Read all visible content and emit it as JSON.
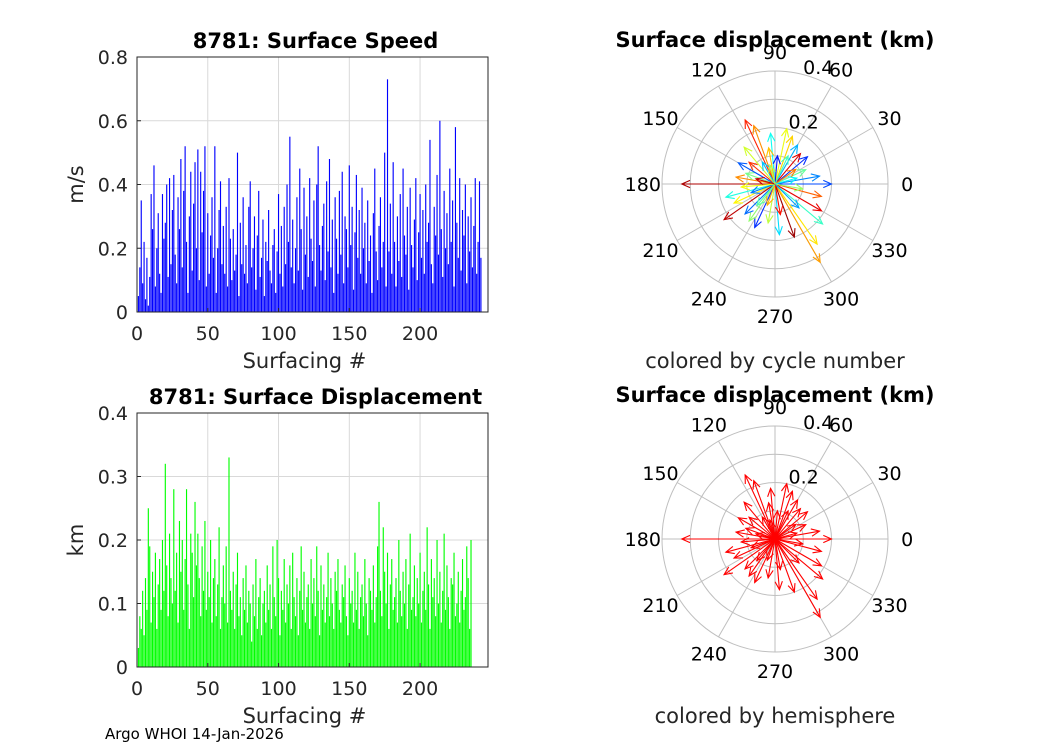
{
  "footer": "Argo WHOI 14-Jan-2026",
  "colors": {
    "speed_bar": "#0000ff",
    "displacement_bar": "#00ff00",
    "hemisphere_arrow": "#ff0000",
    "grid": "#d9d9d9",
    "polar_grid": "#bfbfbf",
    "text": "#262626"
  },
  "chart_data": [
    {
      "id": "speed",
      "type": "bar",
      "title": "8781: Surface Speed",
      "xlabel": "Surfacing #",
      "ylabel": "m/s",
      "xlim": [
        0,
        248
      ],
      "ylim": [
        0,
        0.8
      ],
      "xticks": [
        0,
        50,
        100,
        150,
        200
      ],
      "yticks": [
        0,
        0.2,
        0.4,
        0.6,
        0.8
      ],
      "ytick_labels": [
        "0",
        "0.2",
        "0.4",
        "0.6",
        "0.8"
      ],
      "x_start": 1,
      "values": [
        0.05,
        0.14,
        0.35,
        0.09,
        0.22,
        0.04,
        0.17,
        0.02,
        0.11,
        0.37,
        0.26,
        0.46,
        0.08,
        0.2,
        0.31,
        0.12,
        0.06,
        0.37,
        0.23,
        0.28,
        0.4,
        0.11,
        0.42,
        0.15,
        0.32,
        0.43,
        0.18,
        0.09,
        0.36,
        0.26,
        0.48,
        0.14,
        0.38,
        0.52,
        0.22,
        0.06,
        0.3,
        0.44,
        0.13,
        0.34,
        0.47,
        0.2,
        0.51,
        0.1,
        0.44,
        0.25,
        0.38,
        0.52,
        0.08,
        0.31,
        0.12,
        0.24,
        0.36,
        0.17,
        0.52,
        0.06,
        0.2,
        0.32,
        0.41,
        0.15,
        0.27,
        0.12,
        0.33,
        0.08,
        0.42,
        0.23,
        0.1,
        0.26,
        0.13,
        0.18,
        0.5,
        0.05,
        0.28,
        0.15,
        0.36,
        0.12,
        0.21,
        0.09,
        0.33,
        0.41,
        0.14,
        0.2,
        0.3,
        0.07,
        0.24,
        0.38,
        0.11,
        0.17,
        0.29,
        0.05,
        0.22,
        0.16,
        0.32,
        0.13,
        0.09,
        0.21,
        0.26,
        0.06,
        0.19,
        0.37,
        0.12,
        0.27,
        0.08,
        0.33,
        0.15,
        0.4,
        0.22,
        0.55,
        0.14,
        0.29,
        0.09,
        0.2,
        0.36,
        0.13,
        0.45,
        0.26,
        0.07,
        0.39,
        0.18,
        0.3,
        0.11,
        0.42,
        0.23,
        0.16,
        0.35,
        0.08,
        0.4,
        0.52,
        0.21,
        0.13,
        0.27,
        0.34,
        0.1,
        0.41,
        0.19,
        0.48,
        0.14,
        0.29,
        0.06,
        0.36,
        0.23,
        0.12,
        0.38,
        0.18,
        0.44,
        0.09,
        0.3,
        0.26,
        0.14,
        0.46,
        0.21,
        0.33,
        0.07,
        0.25,
        0.43,
        0.17,
        0.32,
        0.12,
        0.39,
        0.2,
        0.28,
        0.09,
        0.35,
        0.16,
        0.24,
        0.06,
        0.31,
        0.45,
        0.19,
        0.1,
        0.27,
        0.36,
        0.14,
        0.22,
        0.5,
        0.08,
        0.73,
        0.19,
        0.34,
        0.12,
        0.47,
        0.22,
        0.08,
        0.3,
        0.16,
        0.37,
        0.11,
        0.45,
        0.24,
        0.18,
        0.33,
        0.07,
        0.39,
        0.21,
        0.14,
        0.29,
        0.42,
        0.1,
        0.25,
        0.37,
        0.17,
        0.32,
        0.12,
        0.4,
        0.22,
        0.28,
        0.54,
        0.15,
        0.09,
        0.33,
        0.24,
        0.43,
        0.18,
        0.6,
        0.26,
        0.11,
        0.38,
        0.2,
        0.31,
        0.15,
        0.45,
        0.22,
        0.35,
        0.08,
        0.58,
        0.28,
        0.17,
        0.42,
        0.13,
        0.32,
        0.24,
        0.4,
        0.09,
        0.3,
        0.19,
        0.36,
        0.14,
        0.27,
        0.42,
        0.12,
        0.22,
        0.41,
        0.17
      ]
    },
    {
      "id": "displacement",
      "type": "bar",
      "title": "8781: Surface Displacement",
      "xlabel": "Surfacing #",
      "ylabel": "km",
      "xlim": [
        0,
        248
      ],
      "ylim": [
        0,
        0.4
      ],
      "xticks": [
        0,
        50,
        100,
        150,
        200
      ],
      "yticks": [
        0,
        0.1,
        0.2,
        0.3,
        0.4
      ],
      "ytick_labels": [
        "0",
        "0.1",
        "0.2",
        "0.3",
        "0.4"
      ],
      "x_start": 1,
      "values": [
        0.03,
        0.08,
        0.06,
        0.12,
        0.05,
        0.14,
        0.09,
        0.25,
        0.19,
        0.07,
        0.15,
        0.11,
        0.18,
        0.06,
        0.13,
        0.17,
        0.09,
        0.2,
        0.12,
        0.32,
        0.16,
        0.08,
        0.21,
        0.14,
        0.1,
        0.28,
        0.12,
        0.18,
        0.07,
        0.23,
        0.15,
        0.2,
        0.09,
        0.17,
        0.28,
        0.13,
        0.06,
        0.21,
        0.18,
        0.11,
        0.26,
        0.16,
        0.21,
        0.14,
        0.08,
        0.19,
        0.12,
        0.23,
        0.09,
        0.15,
        0.11,
        0.2,
        0.07,
        0.14,
        0.17,
        0.08,
        0.13,
        0.22,
        0.06,
        0.11,
        0.16,
        0.1,
        0.19,
        0.07,
        0.33,
        0.12,
        0.09,
        0.15,
        0.06,
        0.13,
        0.18,
        0.08,
        0.11,
        0.05,
        0.14,
        0.09,
        0.16,
        0.07,
        0.12,
        0.1,
        0.04,
        0.13,
        0.08,
        0.17,
        0.06,
        0.11,
        0.14,
        0.05,
        0.1,
        0.12,
        0.07,
        0.16,
        0.09,
        0.13,
        0.06,
        0.19,
        0.11,
        0.08,
        0.2,
        0.14,
        0.05,
        0.12,
        0.09,
        0.17,
        0.07,
        0.13,
        0.1,
        0.16,
        0.06,
        0.18,
        0.11,
        0.08,
        0.14,
        0.05,
        0.12,
        0.19,
        0.09,
        0.15,
        0.07,
        0.11,
        0.13,
        0.06,
        0.17,
        0.1,
        0.14,
        0.08,
        0.19,
        0.12,
        0.05,
        0.16,
        0.09,
        0.13,
        0.07,
        0.11,
        0.18,
        0.08,
        0.14,
        0.1,
        0.06,
        0.15,
        0.12,
        0.17,
        0.09,
        0.07,
        0.13,
        0.11,
        0.16,
        0.08,
        0.05,
        0.14,
        0.1,
        0.12,
        0.07,
        0.18,
        0.09,
        0.15,
        0.06,
        0.11,
        0.13,
        0.08,
        0.17,
        0.1,
        0.05,
        0.14,
        0.12,
        0.09,
        0.16,
        0.07,
        0.11,
        0.19,
        0.26,
        0.12,
        0.08,
        0.22,
        0.15,
        0.1,
        0.18,
        0.06,
        0.13,
        0.17,
        0.09,
        0.11,
        0.14,
        0.07,
        0.2,
        0.12,
        0.08,
        0.15,
        0.1,
        0.17,
        0.06,
        0.13,
        0.21,
        0.09,
        0.11,
        0.16,
        0.08,
        0.14,
        0.1,
        0.18,
        0.07,
        0.12,
        0.15,
        0.09,
        0.22,
        0.13,
        0.06,
        0.17,
        0.11,
        0.14,
        0.08,
        0.2,
        0.1,
        0.15,
        0.07,
        0.12,
        0.21,
        0.09,
        0.16,
        0.11,
        0.06,
        0.14,
        0.13,
        0.18,
        0.08,
        0.1,
        0.15,
        0.07,
        0.12,
        0.17,
        0.09,
        0.11,
        0.19,
        0.14,
        0.06,
        0.2
      ]
    },
    {
      "id": "polar_cycle",
      "type": "polar",
      "title": "Surface displacement (km)",
      "subtitle": "colored by cycle number",
      "rlim": [
        0,
        0.4
      ],
      "r_tick_labels": [
        {
          "value": 0.2,
          "label": "0.2"
        },
        {
          "value": 0.4,
          "label": "0.4"
        }
      ],
      "angle_ticks": [
        0,
        30,
        60,
        90,
        120,
        150,
        180,
        210,
        240,
        270,
        300,
        330
      ],
      "color_mode": "cycle",
      "colormap": [
        "#0000ff",
        "#0080ff",
        "#00ffff",
        "#80ff80",
        "#ffff00",
        "#ff8000",
        "#ff0000",
        "#800000"
      ],
      "arrows": [
        {
          "angle": 180,
          "r": 0.33,
          "cycle": 0.95
        },
        {
          "angle": 110,
          "r": 0.22,
          "cycle": 0.7
        },
        {
          "angle": 115,
          "r": 0.25,
          "cycle": 0.82
        },
        {
          "angle": 95,
          "r": 0.18,
          "cycle": 0.3
        },
        {
          "angle": 78,
          "r": 0.2,
          "cycle": 0.55
        },
        {
          "angle": 70,
          "r": 0.18,
          "cycle": 0.62
        },
        {
          "angle": 60,
          "r": 0.16,
          "cycle": 0.2
        },
        {
          "angle": 50,
          "r": 0.14,
          "cycle": 0.9
        },
        {
          "angle": 40,
          "r": 0.15,
          "cycle": 0.05
        },
        {
          "angle": 25,
          "r": 0.12,
          "cycle": 0.4
        },
        {
          "angle": 10,
          "r": 0.16,
          "cycle": 0.15
        },
        {
          "angle": 0,
          "r": 0.2,
          "cycle": 0.08
        },
        {
          "angle": 345,
          "r": 0.17,
          "cycle": 0.75
        },
        {
          "angle": 330,
          "r": 0.19,
          "cycle": 0.88
        },
        {
          "angle": 320,
          "r": 0.22,
          "cycle": 0.35
        },
        {
          "angle": 305,
          "r": 0.26,
          "cycle": 0.6
        },
        {
          "angle": 300,
          "r": 0.32,
          "cycle": 0.68
        },
        {
          "angle": 290,
          "r": 0.2,
          "cycle": 0.97
        },
        {
          "angle": 275,
          "r": 0.18,
          "cycle": 0.25
        },
        {
          "angle": 260,
          "r": 0.14,
          "cycle": 0.5
        },
        {
          "angle": 245,
          "r": 0.17,
          "cycle": 0.05
        },
        {
          "angle": 235,
          "r": 0.16,
          "cycle": 0.45
        },
        {
          "angle": 225,
          "r": 0.15,
          "cycle": 0.12
        },
        {
          "angle": 215,
          "r": 0.22,
          "cycle": 0.93
        },
        {
          "angle": 205,
          "r": 0.16,
          "cycle": 0.58
        },
        {
          "angle": 195,
          "r": 0.18,
          "cycle": 0.32
        },
        {
          "angle": 170,
          "r": 0.14,
          "cycle": 0.7
        },
        {
          "angle": 160,
          "r": 0.11,
          "cycle": 0.42
        },
        {
          "angle": 150,
          "r": 0.15,
          "cycle": 0.1
        },
        {
          "angle": 140,
          "r": 0.12,
          "cycle": 0.8
        },
        {
          "angle": 130,
          "r": 0.17,
          "cycle": 0.52
        },
        {
          "angle": 120,
          "r": 0.09,
          "cycle": 0.22
        },
        {
          "angle": 100,
          "r": 0.13,
          "cycle": 0.64
        },
        {
          "angle": 85,
          "r": 0.1,
          "cycle": 0.02
        },
        {
          "angle": 65,
          "r": 0.11,
          "cycle": 0.36
        },
        {
          "angle": 35,
          "r": 0.09,
          "cycle": 0.72
        },
        {
          "angle": 15,
          "r": 0.08,
          "cycle": 0.28
        },
        {
          "angle": 350,
          "r": 0.1,
          "cycle": 0.46
        },
        {
          "angle": 315,
          "r": 0.12,
          "cycle": 0.18
        },
        {
          "angle": 280,
          "r": 0.11,
          "cycle": 0.84
        },
        {
          "angle": 250,
          "r": 0.08,
          "cycle": 0.66
        },
        {
          "angle": 230,
          "r": 0.1,
          "cycle": 0.38
        },
        {
          "angle": 200,
          "r": 0.09,
          "cycle": 0.14
        },
        {
          "angle": 185,
          "r": 0.12,
          "cycle": 0.56
        },
        {
          "angle": 165,
          "r": 0.07,
          "cycle": 0.92
        },
        {
          "angle": 105,
          "r": 0.07,
          "cycle": 0.48
        }
      ]
    },
    {
      "id": "polar_hemisphere",
      "type": "polar",
      "title": "Surface displacement (km)",
      "subtitle": "colored by hemisphere",
      "rlim": [
        0,
        0.4
      ],
      "r_tick_labels": [
        {
          "value": 0.2,
          "label": "0.2"
        },
        {
          "value": 0.4,
          "label": "0.4"
        }
      ],
      "angle_ticks": [
        0,
        30,
        60,
        90,
        120,
        150,
        180,
        210,
        240,
        270,
        300,
        330
      ],
      "color_mode": "hemisphere",
      "arrows": [
        {
          "angle": 180,
          "r": 0.33
        },
        {
          "angle": 110,
          "r": 0.22
        },
        {
          "angle": 115,
          "r": 0.25
        },
        {
          "angle": 95,
          "r": 0.18
        },
        {
          "angle": 78,
          "r": 0.2
        },
        {
          "angle": 70,
          "r": 0.18
        },
        {
          "angle": 60,
          "r": 0.16
        },
        {
          "angle": 50,
          "r": 0.14
        },
        {
          "angle": 40,
          "r": 0.15
        },
        {
          "angle": 25,
          "r": 0.12
        },
        {
          "angle": 10,
          "r": 0.16
        },
        {
          "angle": 0,
          "r": 0.2
        },
        {
          "angle": 345,
          "r": 0.17
        },
        {
          "angle": 330,
          "r": 0.19
        },
        {
          "angle": 320,
          "r": 0.22
        },
        {
          "angle": 305,
          "r": 0.26
        },
        {
          "angle": 300,
          "r": 0.32
        },
        {
          "angle": 290,
          "r": 0.2
        },
        {
          "angle": 275,
          "r": 0.18
        },
        {
          "angle": 260,
          "r": 0.14
        },
        {
          "angle": 245,
          "r": 0.17
        },
        {
          "angle": 235,
          "r": 0.16
        },
        {
          "angle": 225,
          "r": 0.15
        },
        {
          "angle": 215,
          "r": 0.22
        },
        {
          "angle": 205,
          "r": 0.16
        },
        {
          "angle": 195,
          "r": 0.18
        },
        {
          "angle": 170,
          "r": 0.14
        },
        {
          "angle": 160,
          "r": 0.11
        },
        {
          "angle": 150,
          "r": 0.15
        },
        {
          "angle": 140,
          "r": 0.12
        },
        {
          "angle": 130,
          "r": 0.17
        },
        {
          "angle": 120,
          "r": 0.09
        },
        {
          "angle": 100,
          "r": 0.13
        },
        {
          "angle": 85,
          "r": 0.1
        },
        {
          "angle": 65,
          "r": 0.11
        },
        {
          "angle": 35,
          "r": 0.09
        },
        {
          "angle": 15,
          "r": 0.08
        },
        {
          "angle": 350,
          "r": 0.1
        },
        {
          "angle": 315,
          "r": 0.12
        },
        {
          "angle": 280,
          "r": 0.11
        },
        {
          "angle": 250,
          "r": 0.08
        },
        {
          "angle": 230,
          "r": 0.1
        },
        {
          "angle": 200,
          "r": 0.09
        },
        {
          "angle": 185,
          "r": 0.12
        },
        {
          "angle": 165,
          "r": 0.07
        },
        {
          "angle": 105,
          "r": 0.07
        }
      ]
    }
  ]
}
